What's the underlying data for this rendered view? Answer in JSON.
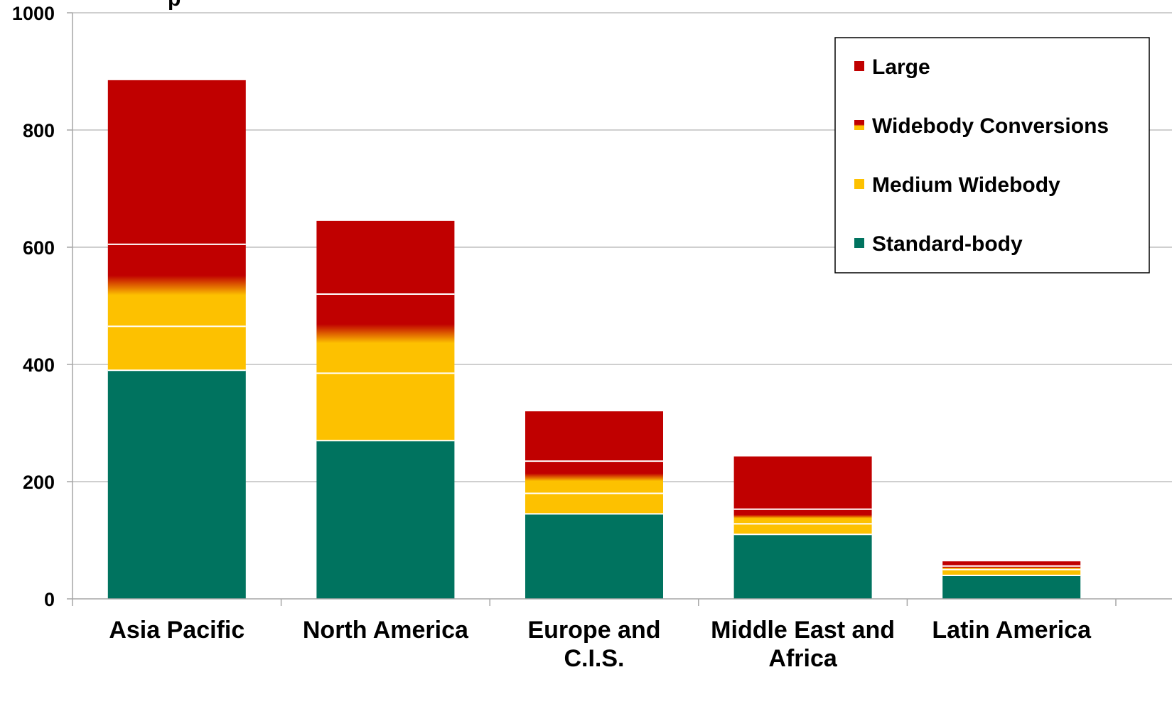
{
  "chart_data": {
    "type": "bar",
    "stacked": true,
    "title": "",
    "xlabel": "",
    "ylabel": "",
    "ylim": [
      0,
      1000
    ],
    "yticks": [
      0,
      200,
      400,
      600,
      800,
      1000
    ],
    "grid": true,
    "legend_position": "top-right",
    "categories": [
      [
        "Asia Pacific"
      ],
      [
        "North America"
      ],
      [
        "Europe and",
        "C.I.S."
      ],
      [
        "Middle East and",
        "Africa"
      ],
      [
        "Latin America"
      ]
    ],
    "series": [
      {
        "name": "Standard-body",
        "color": "#00735F",
        "values": [
          390,
          270,
          145,
          110,
          40
        ]
      },
      {
        "name": "Medium Widebody",
        "color": "#FDC100",
        "values": [
          75,
          115,
          35,
          18,
          10
        ]
      },
      {
        "name": "Widebody Conversions",
        "color": "#FDC100-to-#C00000",
        "values": [
          140,
          135,
          55,
          25,
          6
        ]
      },
      {
        "name": "Large",
        "color": "#C00000",
        "values": [
          280,
          125,
          85,
          90,
          8
        ]
      }
    ],
    "legend_order": [
      "Large",
      "Widebody Conversions",
      "Medium Widebody",
      "Standard-body"
    ]
  },
  "colors": {
    "standard": "#00735F",
    "medium": "#FDC100",
    "large": "#C00000",
    "grid": "#BFBFBF",
    "axis": "#A6A6A6"
  }
}
